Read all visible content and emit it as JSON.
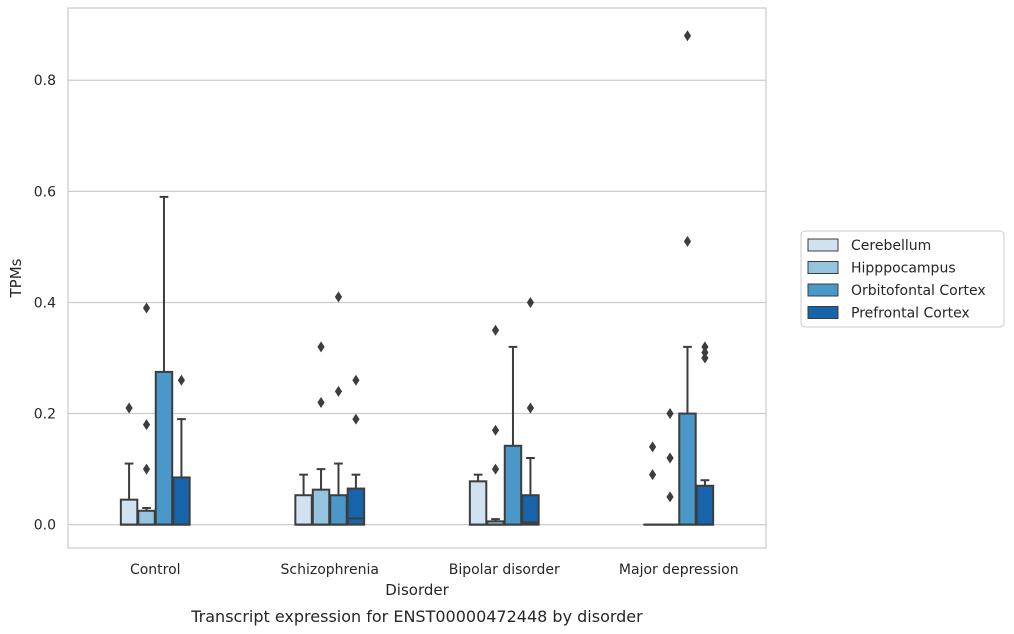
{
  "chart_data": {
    "type": "box",
    "caption": "Transcript expression for ENST00000472448 by disorder",
    "xlabel": "Disorder",
    "ylabel": "TPMs",
    "ylim": [
      -0.042,
      0.93
    ],
    "yticks": [
      0.0,
      0.2,
      0.4,
      0.6,
      0.8
    ],
    "ytick_labels": [
      "0.0",
      "0.2",
      "0.4",
      "0.6",
      "0.8"
    ],
    "grid": "horizontal",
    "legend_position": "right",
    "categories": [
      "Control",
      "Schizophrenia",
      "Bipolar disorder",
      "Major depression"
    ],
    "series": [
      {
        "name": "Cerebellum",
        "color": "#d0e1f2",
        "boxes": [
          {
            "whislo": 0.0,
            "q1": 0.0,
            "med": 0.0,
            "q3": 0.045,
            "whishi": 0.11,
            "fliers": [
              0.21
            ]
          },
          {
            "whislo": 0.0,
            "q1": 0.0,
            "med": 0.0,
            "q3": 0.053,
            "whishi": 0.09,
            "fliers": []
          },
          {
            "whislo": 0.0,
            "q1": 0.0,
            "med": 0.0,
            "q3": 0.078,
            "whishi": 0.09,
            "fliers": []
          },
          {
            "whislo": 0.0,
            "q1": 0.0,
            "med": 0.0,
            "q3": 0.0,
            "whishi": 0.0,
            "fliers": [
              0.14,
              0.09
            ]
          }
        ]
      },
      {
        "name": "Hipppocampus",
        "color": "#94c4df",
        "boxes": [
          {
            "whislo": 0.0,
            "q1": 0.0,
            "med": 0.0,
            "q3": 0.025,
            "whishi": 0.03,
            "fliers": [
              0.39,
              0.18,
              0.1
            ]
          },
          {
            "whislo": 0.0,
            "q1": 0.0,
            "med": 0.0,
            "q3": 0.063,
            "whishi": 0.1,
            "fliers": [
              0.32,
              0.22
            ]
          },
          {
            "whislo": 0.0,
            "q1": 0.0,
            "med": 0.0,
            "q3": 0.006,
            "whishi": 0.01,
            "fliers": [
              0.35,
              0.17,
              0.1
            ]
          },
          {
            "whislo": 0.0,
            "q1": 0.0,
            "med": 0.0,
            "q3": 0.0,
            "whishi": 0.0,
            "fliers": [
              0.2,
              0.12,
              0.05
            ]
          }
        ]
      },
      {
        "name": "Orbitofontal Cortex",
        "color": "#4a98c9",
        "boxes": [
          {
            "whislo": 0.0,
            "q1": 0.0,
            "med": 0.0,
            "q3": 0.275,
            "whishi": 0.59,
            "fliers": []
          },
          {
            "whislo": 0.0,
            "q1": 0.0,
            "med": 0.0,
            "q3": 0.053,
            "whishi": 0.11,
            "fliers": [
              0.41,
              0.24
            ]
          },
          {
            "whislo": 0.0,
            "q1": 0.0,
            "med": 0.0,
            "q3": 0.142,
            "whishi": 0.32,
            "fliers": []
          },
          {
            "whislo": 0.0,
            "q1": 0.0,
            "med": 0.0,
            "q3": 0.2,
            "whishi": 0.32,
            "fliers": [
              0.88,
              0.51
            ]
          }
        ]
      },
      {
        "name": "Prefrontal Cortex",
        "color": "#1764ab",
        "boxes": [
          {
            "whislo": 0.0,
            "q1": 0.0,
            "med": 0.0,
            "q3": 0.085,
            "whishi": 0.19,
            "fliers": [
              0.26
            ]
          },
          {
            "whislo": 0.0,
            "q1": 0.0,
            "med": 0.011,
            "q3": 0.065,
            "whishi": 0.09,
            "fliers": [
              0.26,
              0.19
            ]
          },
          {
            "whislo": 0.0,
            "q1": 0.0,
            "med": 0.004,
            "q3": 0.053,
            "whishi": 0.12,
            "fliers": [
              0.4,
              0.21
            ]
          },
          {
            "whislo": 0.0,
            "q1": 0.0,
            "med": 0.0,
            "q3": 0.07,
            "whishi": 0.08,
            "fliers": [
              0.32,
              0.31,
              0.3
            ]
          }
        ]
      }
    ]
  }
}
